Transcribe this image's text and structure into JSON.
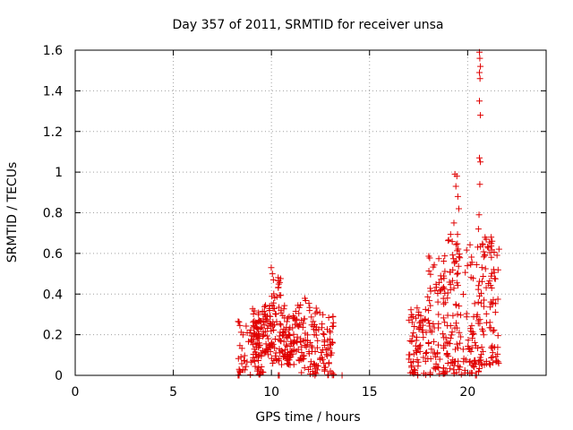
{
  "chart_data": {
    "type": "scatter",
    "title": "Day 357 of 2011, SRMTID for receiver unsa",
    "xlabel": "GPS time / hours",
    "ylabel": "SRMTID / TECUs",
    "xlim": [
      0,
      24
    ],
    "ylim": [
      0,
      1.6
    ],
    "xticks": [
      0,
      5,
      10,
      15,
      20
    ],
    "yticks": [
      0,
      0.2,
      0.4,
      0.6,
      0.8,
      1,
      1.2,
      1.4,
      1.6
    ],
    "xtick_labels": [
      "0",
      "5",
      "10",
      "15",
      "20"
    ],
    "ytick_labels": [
      "0",
      "0.2",
      "0.4",
      "0.6",
      "0.8",
      "1",
      "1.2",
      "1.4",
      "1.6"
    ],
    "grid": true,
    "marker": "plus",
    "color": "#e00000",
    "series": [
      {
        "name": "SRMTID",
        "clusters": [
          {
            "x_range": [
              8.3,
              9.6
            ],
            "y_range": [
              0.0,
              0.28
            ],
            "count": 70
          },
          {
            "x_range": [
              9.0,
              10.0
            ],
            "y_range": [
              0.1,
              0.35
            ],
            "count": 80
          },
          {
            "x_range": [
              10.0,
              10.5
            ],
            "y_range": [
              0.05,
              0.5
            ],
            "count": 50
          },
          {
            "x_range": [
              10.5,
              11.5
            ],
            "y_range": [
              0.05,
              0.35
            ],
            "count": 90
          },
          {
            "x_range": [
              11.5,
              12.5
            ],
            "y_range": [
              0.0,
              0.38
            ],
            "count": 70
          },
          {
            "x_range": [
              12.5,
              13.2
            ],
            "y_range": [
              0.0,
              0.3
            ],
            "count": 50
          },
          {
            "x_range": [
              17.0,
              18.0
            ],
            "y_range": [
              0.0,
              0.4
            ],
            "count": 70
          },
          {
            "x_range": [
              18.0,
              19.0
            ],
            "y_range": [
              0.0,
              0.6
            ],
            "count": 90
          },
          {
            "x_range": [
              19.0,
              20.0
            ],
            "y_range": [
              0.0,
              0.7
            ],
            "count": 80
          },
          {
            "x_range": [
              20.0,
              20.6
            ],
            "y_range": [
              0.0,
              0.65
            ],
            "count": 50
          },
          {
            "x_range": [
              20.6,
              21.6
            ],
            "y_range": [
              0.05,
              0.68
            ],
            "count": 90
          }
        ],
        "points": [
          {
            "x": 9.99,
            "y": 0.53
          },
          {
            "x": 10.05,
            "y": 0.5
          },
          {
            "x": 10.1,
            "y": 0.47
          },
          {
            "x": 19.35,
            "y": 0.99
          },
          {
            "x": 19.45,
            "y": 0.98
          },
          {
            "x": 19.5,
            "y": 0.88
          },
          {
            "x": 19.4,
            "y": 0.93
          },
          {
            "x": 19.55,
            "y": 0.82
          },
          {
            "x": 19.3,
            "y": 0.75
          },
          {
            "x": 20.6,
            "y": 1.59
          },
          {
            "x": 20.62,
            "y": 1.56
          },
          {
            "x": 20.65,
            "y": 1.52
          },
          {
            "x": 20.6,
            "y": 1.49
          },
          {
            "x": 20.63,
            "y": 1.46
          },
          {
            "x": 20.6,
            "y": 1.35
          },
          {
            "x": 20.65,
            "y": 1.28
          },
          {
            "x": 20.6,
            "y": 1.07
          },
          {
            "x": 20.65,
            "y": 1.05
          },
          {
            "x": 20.62,
            "y": 0.94
          },
          {
            "x": 20.58,
            "y": 0.79
          },
          {
            "x": 20.55,
            "y": 0.72
          },
          {
            "x": 21.2,
            "y": 0.68
          },
          {
            "x": 21.25,
            "y": 0.66
          },
          {
            "x": 8.3,
            "y": 0.0
          },
          {
            "x": 8.35,
            "y": 0.0
          },
          {
            "x": 10.35,
            "y": 0.0
          },
          {
            "x": 10.4,
            "y": 0.0
          },
          {
            "x": 13.6,
            "y": 0.0
          },
          {
            "x": 20.4,
            "y": 0.0
          },
          {
            "x": 20.45,
            "y": 0.0
          }
        ]
      }
    ]
  }
}
